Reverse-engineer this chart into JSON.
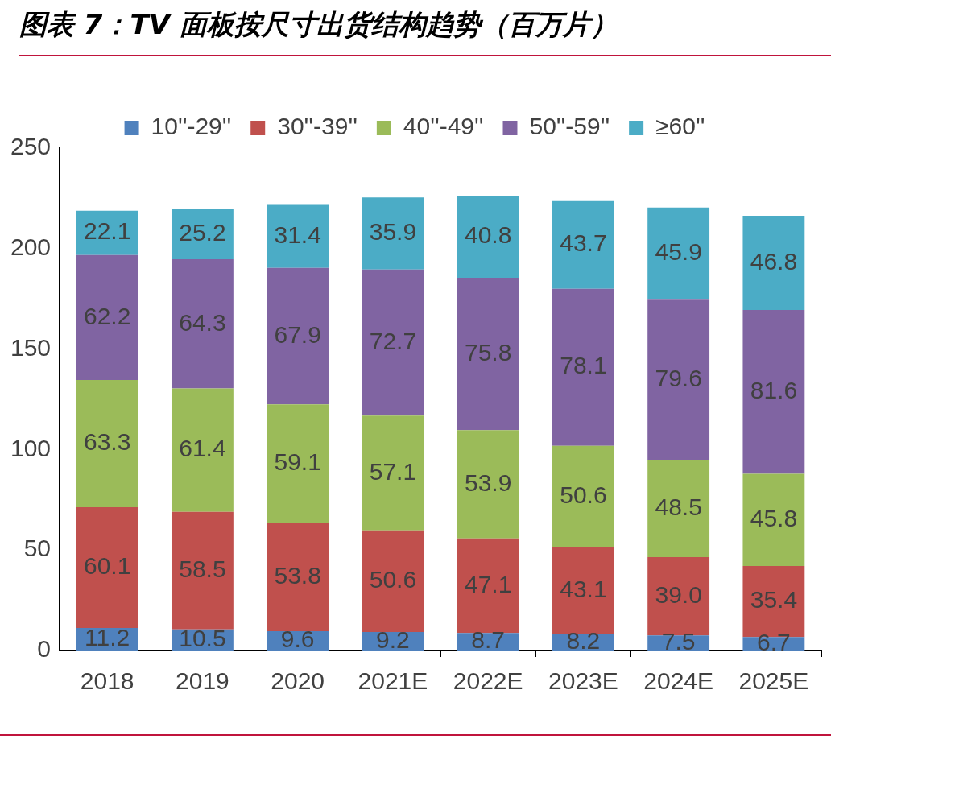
{
  "chart_data": {
    "type": "bar",
    "title": "图表 7：TV 面板按尺寸出货结构趋势（百万片）",
    "stacked": true,
    "legend": "top",
    "grid": false,
    "categories": [
      "2018",
      "2019",
      "2020",
      "2021E",
      "2022E",
      "2023E",
      "2024E",
      "2025E"
    ],
    "ylim": [
      0,
      250
    ],
    "yticks": [
      0,
      50,
      100,
      150,
      200,
      250
    ],
    "series": [
      {
        "name": "10''-29''",
        "color": "#4f81bd",
        "values": [
          11.2,
          10.5,
          9.6,
          9.2,
          8.7,
          8.2,
          7.5,
          6.7
        ],
        "value_labels": [
          "11.2",
          "10.5",
          "9.6",
          "9.2",
          "8.7",
          "8.2",
          "7.5",
          "6.7"
        ]
      },
      {
        "name": "30''-39''",
        "color": "#c0504d",
        "values": [
          60.1,
          58.5,
          53.8,
          50.6,
          47.1,
          43.1,
          39.0,
          35.4
        ],
        "value_labels": [
          "60.1",
          "58.5",
          "53.8",
          "50.6",
          "47.1",
          "43.1",
          "39.0",
          "35.4"
        ]
      },
      {
        "name": "40''-49''",
        "color": "#9bbb59",
        "values": [
          63.3,
          61.4,
          59.1,
          57.1,
          53.9,
          50.6,
          48.5,
          45.8
        ],
        "value_labels": [
          "63.3",
          "61.4",
          "59.1",
          "57.1",
          "53.9",
          "50.6",
          "48.5",
          "45.8"
        ]
      },
      {
        "name": "50''-59''",
        "color": "#8064a2",
        "values": [
          62.2,
          64.3,
          67.9,
          72.7,
          75.8,
          78.1,
          79.6,
          81.6
        ],
        "value_labels": [
          "62.2",
          "64.3",
          "67.9",
          "72.7",
          "75.8",
          "78.1",
          "79.6",
          "81.6"
        ]
      },
      {
        "name": "≥60''",
        "color": "#4bacc6",
        "values": [
          22.1,
          25.2,
          31.4,
          35.9,
          40.8,
          43.7,
          45.9,
          46.8
        ],
        "value_labels": [
          "22.1",
          "25.2",
          "31.4",
          "35.9",
          "40.8",
          "43.7",
          "45.9",
          "46.8"
        ]
      }
    ]
  }
}
